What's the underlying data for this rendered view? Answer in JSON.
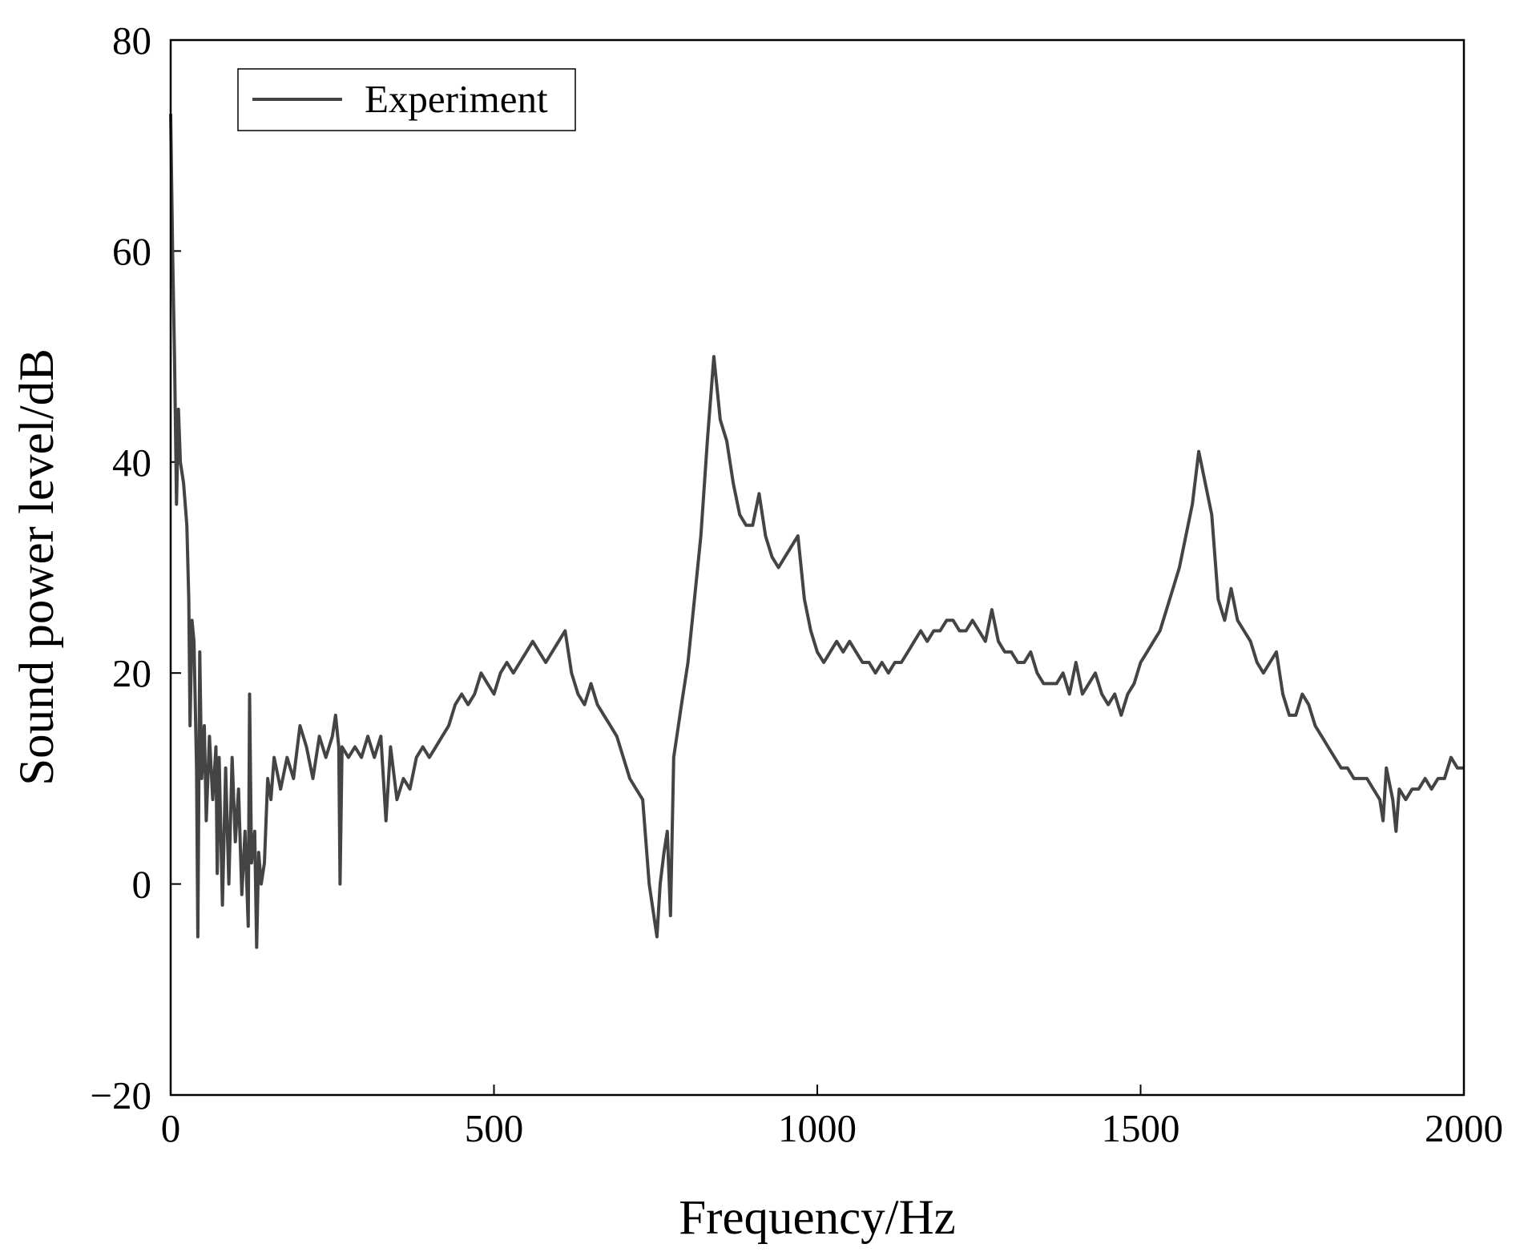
{
  "chart_data": {
    "type": "line",
    "xlabel": "Frequency/Hz",
    "ylabel": "Sound power level/dB",
    "xlim": [
      0,
      2000
    ],
    "xticks": [
      0,
      500,
      1000,
      1500,
      2000
    ],
    "ylim": [
      -20,
      80
    ],
    "yticks": [
      {
        "value": -20,
        "label": "−20"
      },
      0,
      20,
      40,
      60,
      80
    ],
    "grid": false,
    "legend": "upper left",
    "x": [
      0,
      3,
      6,
      9,
      12,
      15,
      20,
      25,
      28,
      30,
      33,
      36,
      40,
      42,
      45,
      48,
      52,
      55,
      60,
      65,
      70,
      72,
      75,
      80,
      85,
      90,
      95,
      100,
      105,
      110,
      115,
      120,
      122,
      125,
      130,
      133,
      136,
      140,
      145,
      150,
      155,
      160,
      170,
      180,
      190,
      200,
      210,
      220,
      230,
      240,
      250,
      255,
      260,
      262,
      265,
      275,
      285,
      295,
      305,
      315,
      325,
      333,
      340,
      350,
      360,
      370,
      380,
      390,
      400,
      410,
      420,
      430,
      440,
      450,
      460,
      470,
      480,
      490,
      500,
      510,
      520,
      530,
      540,
      550,
      560,
      570,
      580,
      590,
      600,
      610,
      620,
      630,
      640,
      650,
      660,
      670,
      680,
      690,
      700,
      710,
      720,
      730,
      740,
      752,
      757,
      763,
      768,
      773,
      778,
      790,
      800,
      810,
      820,
      830,
      840,
      850,
      860,
      870,
      880,
      890,
      900,
      910,
      920,
      930,
      940,
      950,
      960,
      970,
      980,
      990,
      1000,
      1010,
      1020,
      1030,
      1040,
      1050,
      1060,
      1070,
      1080,
      1090,
      1100,
      1110,
      1120,
      1130,
      1140,
      1150,
      1160,
      1170,
      1180,
      1190,
      1200,
      1210,
      1220,
      1230,
      1240,
      1250,
      1260,
      1270,
      1280,
      1290,
      1300,
      1310,
      1320,
      1330,
      1340,
      1350,
      1360,
      1370,
      1380,
      1390,
      1400,
      1410,
      1420,
      1430,
      1440,
      1450,
      1460,
      1470,
      1480,
      1490,
      1500,
      1510,
      1520,
      1530,
      1540,
      1550,
      1560,
      1570,
      1580,
      1590,
      1600,
      1610,
      1620,
      1630,
      1640,
      1650,
      1660,
      1670,
      1680,
      1690,
      1700,
      1710,
      1720,
      1730,
      1740,
      1750,
      1760,
      1770,
      1780,
      1790,
      1800,
      1810,
      1820,
      1830,
      1840,
      1850,
      1860,
      1870,
      1875,
      1880,
      1890,
      1895,
      1900,
      1910,
      1920,
      1930,
      1940,
      1950,
      1960,
      1970,
      1980,
      1990,
      2000
    ],
    "series": [
      {
        "name": "Experiment",
        "color": "#444444",
        "values": [
          73,
          60,
          50,
          36,
          45,
          40,
          38,
          34,
          27,
          15,
          25,
          23,
          11,
          -5,
          22,
          10,
          15,
          6,
          14,
          8,
          13,
          1,
          12,
          -2,
          11,
          0,
          12,
          4,
          9,
          -1,
          5,
          -4,
          18,
          2,
          5,
          -6,
          3,
          0,
          2,
          10,
          8,
          12,
          9,
          12,
          10,
          15,
          13,
          10,
          14,
          12,
          14,
          16,
          13,
          0,
          13,
          12,
          13,
          12,
          14,
          12,
          14,
          6,
          13,
          8,
          10,
          9,
          12,
          13,
          12,
          13,
          14,
          15,
          17,
          18,
          17,
          18,
          20,
          19,
          18,
          20,
          21,
          20,
          21,
          22,
          23,
          22,
          21,
          22,
          23,
          24,
          20,
          18,
          17,
          19,
          17,
          16,
          15,
          14,
          12,
          10,
          9,
          8,
          0,
          -5,
          0,
          3,
          5,
          -3,
          12,
          17,
          21,
          27,
          33,
          42,
          50,
          44,
          42,
          38,
          35,
          34,
          34,
          37,
          33,
          31,
          30,
          31,
          32,
          33,
          27,
          24,
          22,
          21,
          22,
          23,
          22,
          23,
          22,
          21,
          21,
          20,
          21,
          20,
          21,
          21,
          22,
          23,
          24,
          23,
          24,
          24,
          25,
          25,
          24,
          24,
          25,
          24,
          23,
          26,
          23,
          22,
          22,
          21,
          21,
          22,
          20,
          19,
          19,
          19,
          20,
          18,
          21,
          18,
          19,
          20,
          18,
          17,
          18,
          16,
          18,
          19,
          21,
          22,
          23,
          24,
          26,
          28,
          30,
          33,
          36,
          41,
          38,
          35,
          27,
          25,
          28,
          25,
          24,
          23,
          21,
          20,
          21,
          22,
          18,
          16,
          16,
          18,
          17,
          15,
          14,
          13,
          12,
          11,
          11,
          10,
          10,
          10,
          9,
          8,
          6,
          11,
          8,
          5,
          9,
          8,
          9,
          9,
          10,
          9,
          10,
          10,
          12,
          11,
          11
        ]
      }
    ]
  }
}
